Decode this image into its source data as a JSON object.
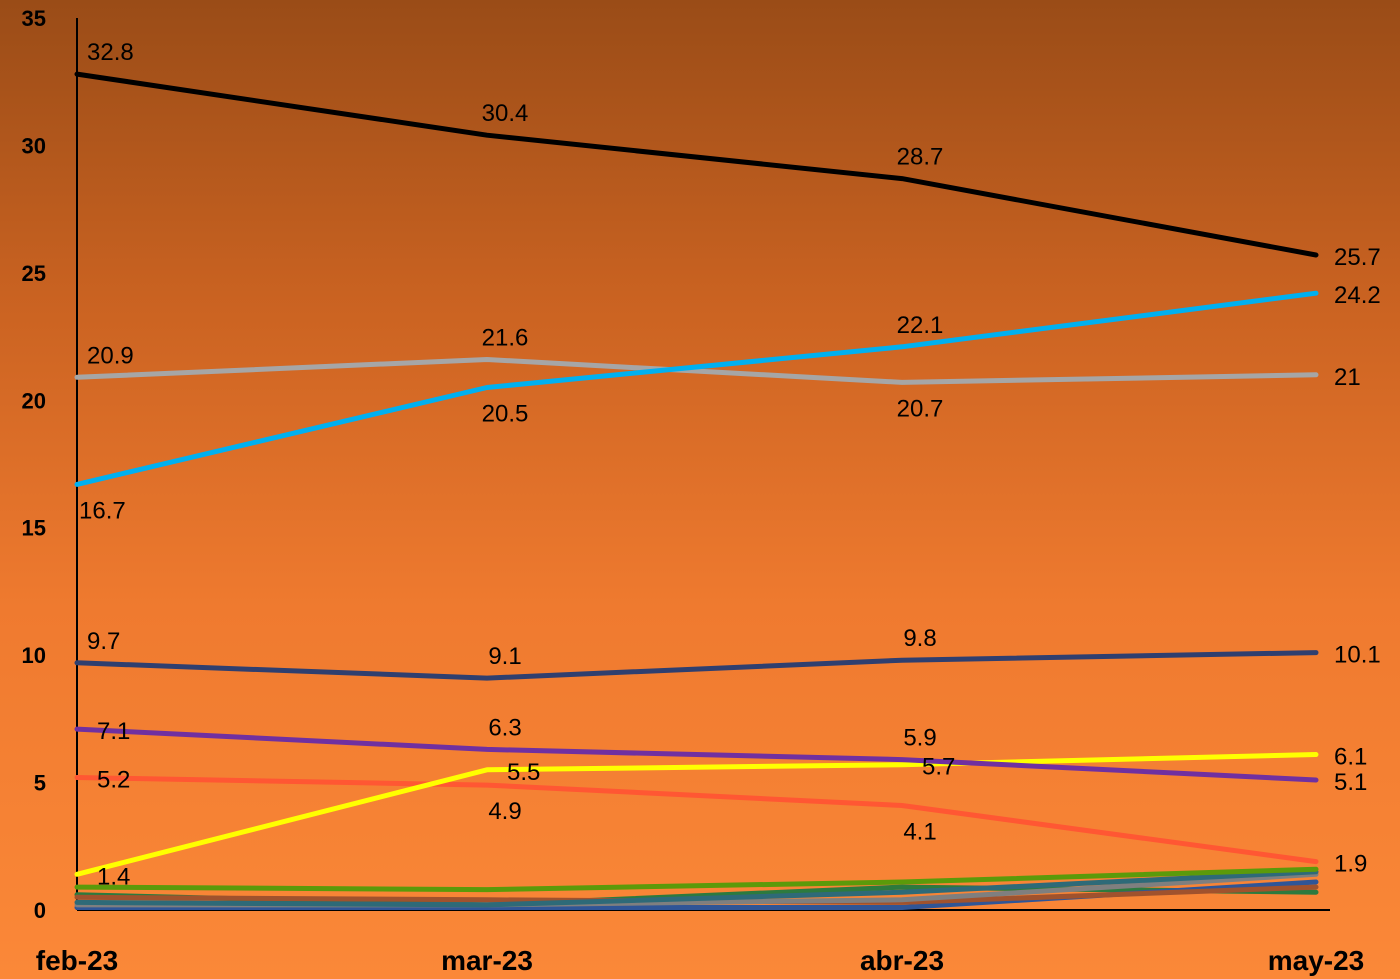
{
  "chart_data": {
    "type": "line",
    "categories": [
      "feb-23",
      "mar-23",
      "abr-23",
      "may-23"
    ],
    "ylim": [
      0,
      35
    ],
    "yticks": [
      "0",
      "5",
      "10",
      "15",
      "20",
      "25",
      "30",
      "35"
    ],
    "grid": false,
    "series": [
      {
        "color": "#000000",
        "values": [
          32.8,
          30.4,
          28.7,
          25.7
        ],
        "labels": [
          "32.8",
          "30.4",
          "28.7",
          "25.7"
        ],
        "label_pos": [
          "above",
          "above",
          "above",
          "right"
        ]
      },
      {
        "color": "#00b0f0",
        "values": [
          16.7,
          20.5,
          22.1,
          24.2
        ],
        "labels": [
          "16.7",
          "20.5",
          "22.1",
          "24.2"
        ],
        "label_pos": [
          "below",
          "below",
          "above",
          "right"
        ]
      },
      {
        "color": "#a6a6a6",
        "values": [
          20.9,
          21.6,
          20.7,
          21.0
        ],
        "labels": [
          "20.9",
          "21.6",
          "20.7",
          "21"
        ],
        "label_pos": [
          "above",
          "above",
          "below",
          "right"
        ]
      },
      {
        "color": "#2f3f6f",
        "values": [
          9.7,
          9.1,
          9.8,
          10.1
        ],
        "labels": [
          "9.7",
          "9.1",
          "9.8",
          "10.1"
        ],
        "label_pos": [
          "above",
          "above",
          "above",
          "right"
        ]
      },
      {
        "color": "#7030a0",
        "values": [
          7.1,
          6.3,
          5.9,
          5.1
        ],
        "labels": [
          "7.1",
          "6.3",
          "5.9",
          "5.1"
        ],
        "label_pos": [
          "right",
          "above",
          "above",
          "right"
        ]
      },
      {
        "color": "#ffff00",
        "values": [
          1.4,
          5.5,
          5.7,
          6.1
        ],
        "labels": [
          "1.4",
          "5.5",
          "5.7",
          "6.1"
        ],
        "label_pos": [
          "right",
          "right",
          "right",
          "right"
        ]
      },
      {
        "color": "#ff5733",
        "values": [
          5.2,
          4.9,
          4.1,
          1.9
        ],
        "labels": [
          "5.2",
          "4.9",
          "4.1",
          "1.9"
        ],
        "label_pos": [
          "right",
          "below",
          "below",
          "right"
        ]
      },
      {
        "color": "#5b9a0a",
        "values": [
          0.9,
          0.8,
          1.1,
          1.6
        ],
        "labels": [],
        "label_pos": []
      },
      {
        "color": "#2e6a78",
        "values": [
          0.3,
          0.2,
          0.7,
          1.5
        ],
        "labels": [],
        "label_pos": []
      },
      {
        "color": "#7f7f7f",
        "values": [
          0.2,
          0.2,
          0.4,
          1.4
        ],
        "labels": [],
        "label_pos": []
      },
      {
        "color": "#a0522d",
        "values": [
          0.5,
          0.4,
          0.3,
          0.9
        ],
        "labels": [],
        "label_pos": []
      },
      {
        "color": "#2f5597",
        "values": [
          0.1,
          0.1,
          0.1,
          1.1
        ],
        "labels": [],
        "label_pos": []
      },
      {
        "color": "#2d7a3e",
        "values": [
          0.6,
          0.2,
          0.9,
          0.7
        ],
        "labels": [],
        "label_pos": []
      }
    ]
  }
}
